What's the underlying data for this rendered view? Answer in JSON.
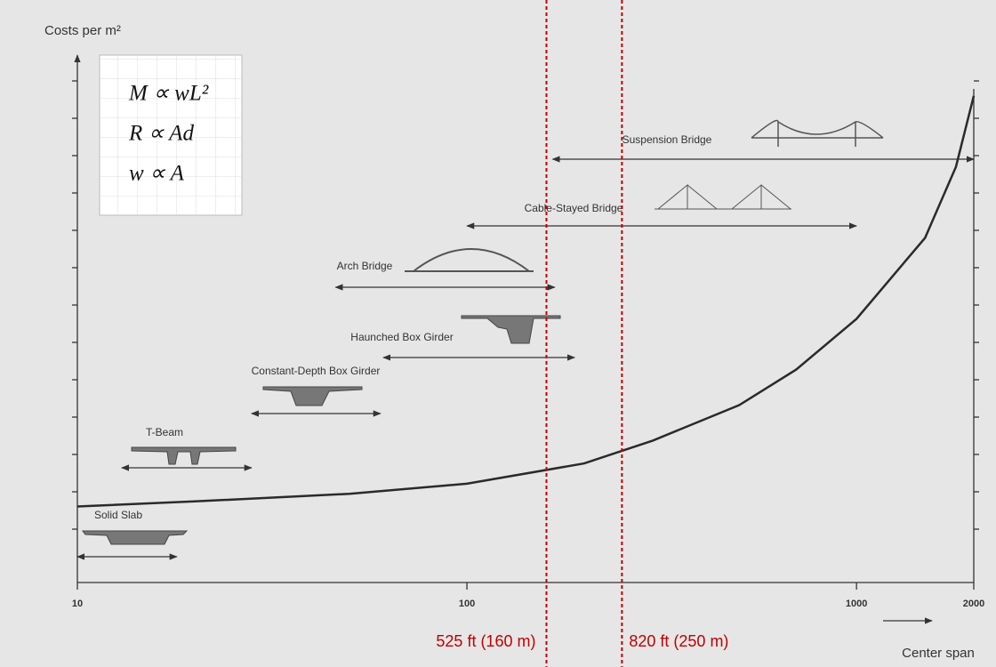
{
  "chart_data": {
    "type": "line",
    "y_label": "Costs per m²",
    "x_label": "Center span",
    "xscale": "log",
    "x": [
      10,
      20,
      50,
      100,
      200,
      300,
      500,
      700,
      1000,
      1500,
      1800,
      2000
    ],
    "series": [
      {
        "name": "Costs",
        "color": "#2a2a2a",
        "values": [
          15,
          16,
          17.5,
          19.5,
          23.5,
          28,
          35,
          42,
          52,
          68,
          82,
          96
        ]
      }
    ],
    "xlim": [
      10,
      2000
    ],
    "xticks": [
      10,
      100,
      1000,
      2000
    ],
    "ylim": [
      0,
      100
    ],
    "spans": [
      {
        "name": "Solid Slab",
        "from": 10,
        "to": 18
      },
      {
        "name": "T-Beam",
        "from": 13,
        "to": 28
      },
      {
        "name": "Constant-Depth Box Girder",
        "from": 28,
        "to": 60
      },
      {
        "name": "Haunched Box Girder",
        "from": 61,
        "to": 189
      },
      {
        "name": "Arch Bridge",
        "from": 46,
        "to": 168
      },
      {
        "name": "Cable-Stayed Bridge",
        "from": 100,
        "to": 1000
      },
      {
        "name": "Suspension Bridge",
        "from": 166,
        "to": 2000
      }
    ],
    "markers": [
      {
        "label": "525 ft (160 m)",
        "x": 160,
        "color": "#c00000"
      },
      {
        "label": "820 ft (250 m)",
        "x": 250,
        "color": "#c00000"
      }
    ],
    "formulas": [
      "M ∝ wL²",
      "R ∝ Ad",
      "w ∝ A"
    ]
  }
}
